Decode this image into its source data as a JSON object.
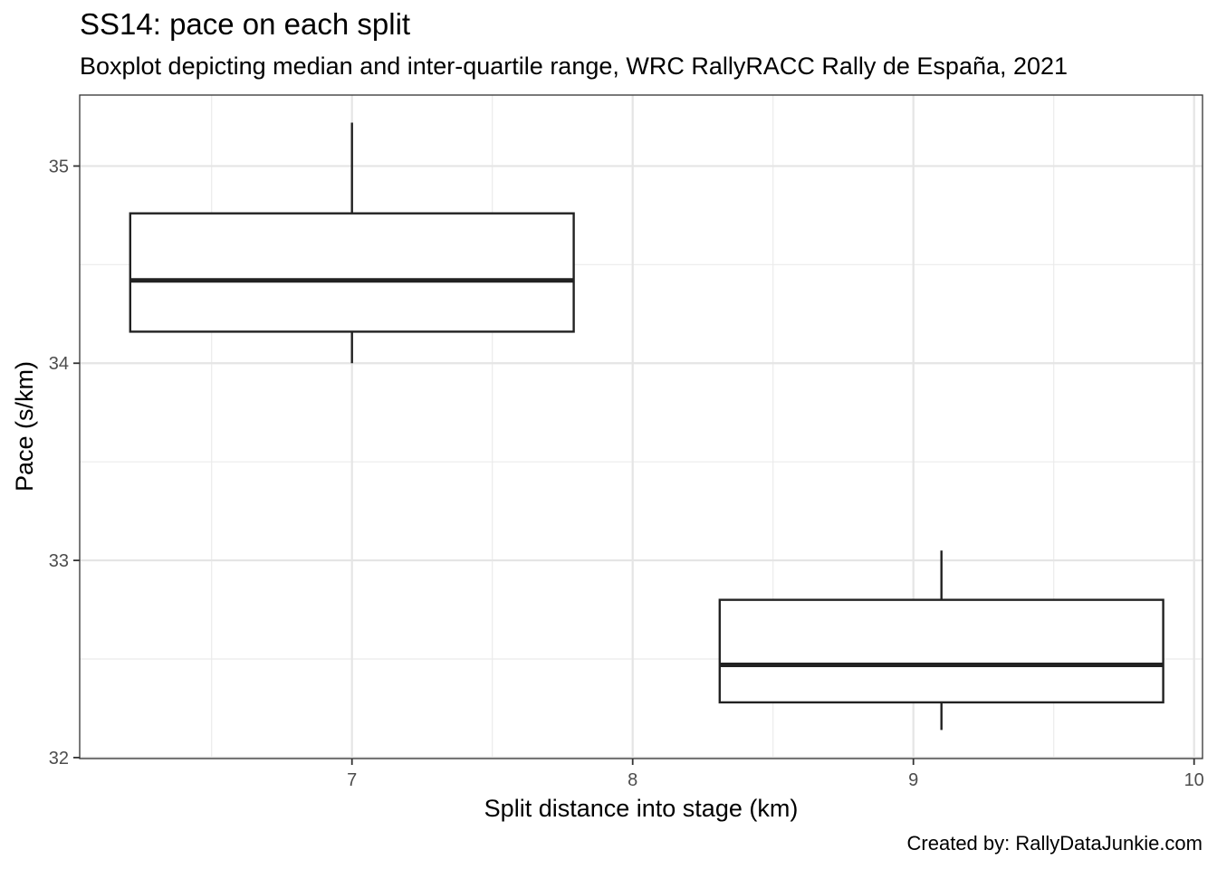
{
  "chart_data": {
    "type": "boxplot",
    "title": "SS14: pace on each split",
    "subtitle": "Boxplot depicting median and inter-quartile range, WRC RallyRACC Rally de España, 2021",
    "xlabel": "Split distance into stage (km)",
    "ylabel": "Pace (s/km)",
    "caption": "Created by: RallyDataJunkie.com",
    "xlim": [
      6.03,
      10.03
    ],
    "ylim": [
      31.995,
      35.36
    ],
    "x_ticks": [
      7,
      8,
      9,
      10
    ],
    "y_ticks": [
      32,
      33,
      34,
      35
    ],
    "grid": true,
    "boxes": [
      {
        "x": 7.0,
        "x_start": 6.21,
        "x_end": 7.79,
        "min": 34.0,
        "q1": 34.16,
        "median": 34.42,
        "q3": 34.76,
        "max": 35.22
      },
      {
        "x": 9.1,
        "x_start": 8.31,
        "x_end": 9.89,
        "min": 32.14,
        "q1": 32.28,
        "median": 32.47,
        "q3": 32.8,
        "max": 33.05
      }
    ]
  }
}
